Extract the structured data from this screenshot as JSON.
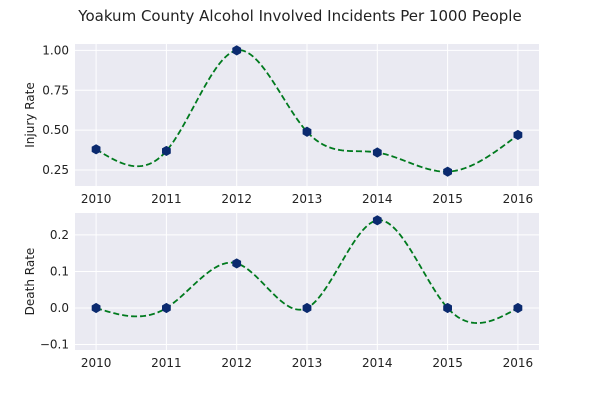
{
  "chart_data": {
    "type": "line",
    "title": "Yoakum County Alcohol Involved Incidents Per 1000 People",
    "x": [
      2010,
      2011,
      2012,
      2013,
      2014,
      2015,
      2016
    ],
    "panels": [
      {
        "ylabel": "Injury Rate",
        "ylim": [
          0.15,
          1.04
        ],
        "yticks": [
          0.25,
          0.5,
          0.75,
          1.0
        ],
        "ytick_labels": [
          "0.25",
          "0.50",
          "0.75",
          "1.00"
        ],
        "values": [
          0.38,
          0.37,
          1.0,
          0.49,
          0.36,
          0.24,
          0.47
        ]
      },
      {
        "ylabel": "Death Rate",
        "ylim": [
          -0.115,
          0.26
        ],
        "yticks": [
          -0.1,
          0.0,
          0.1,
          0.2
        ],
        "ytick_labels": [
          "−0.1",
          "0.0",
          "0.1",
          "0.2"
        ],
        "values": [
          0.0,
          0.0,
          0.122,
          0.0,
          0.24,
          0.0,
          0.0
        ]
      }
    ],
    "xtick_labels": [
      "2010",
      "2011",
      "2012",
      "2013",
      "2014",
      "2015",
      "2016"
    ],
    "grid": true,
    "colors": {
      "line": "#007a1e",
      "marker": "#0b2a6f",
      "background": "#eaeaf2"
    }
  }
}
